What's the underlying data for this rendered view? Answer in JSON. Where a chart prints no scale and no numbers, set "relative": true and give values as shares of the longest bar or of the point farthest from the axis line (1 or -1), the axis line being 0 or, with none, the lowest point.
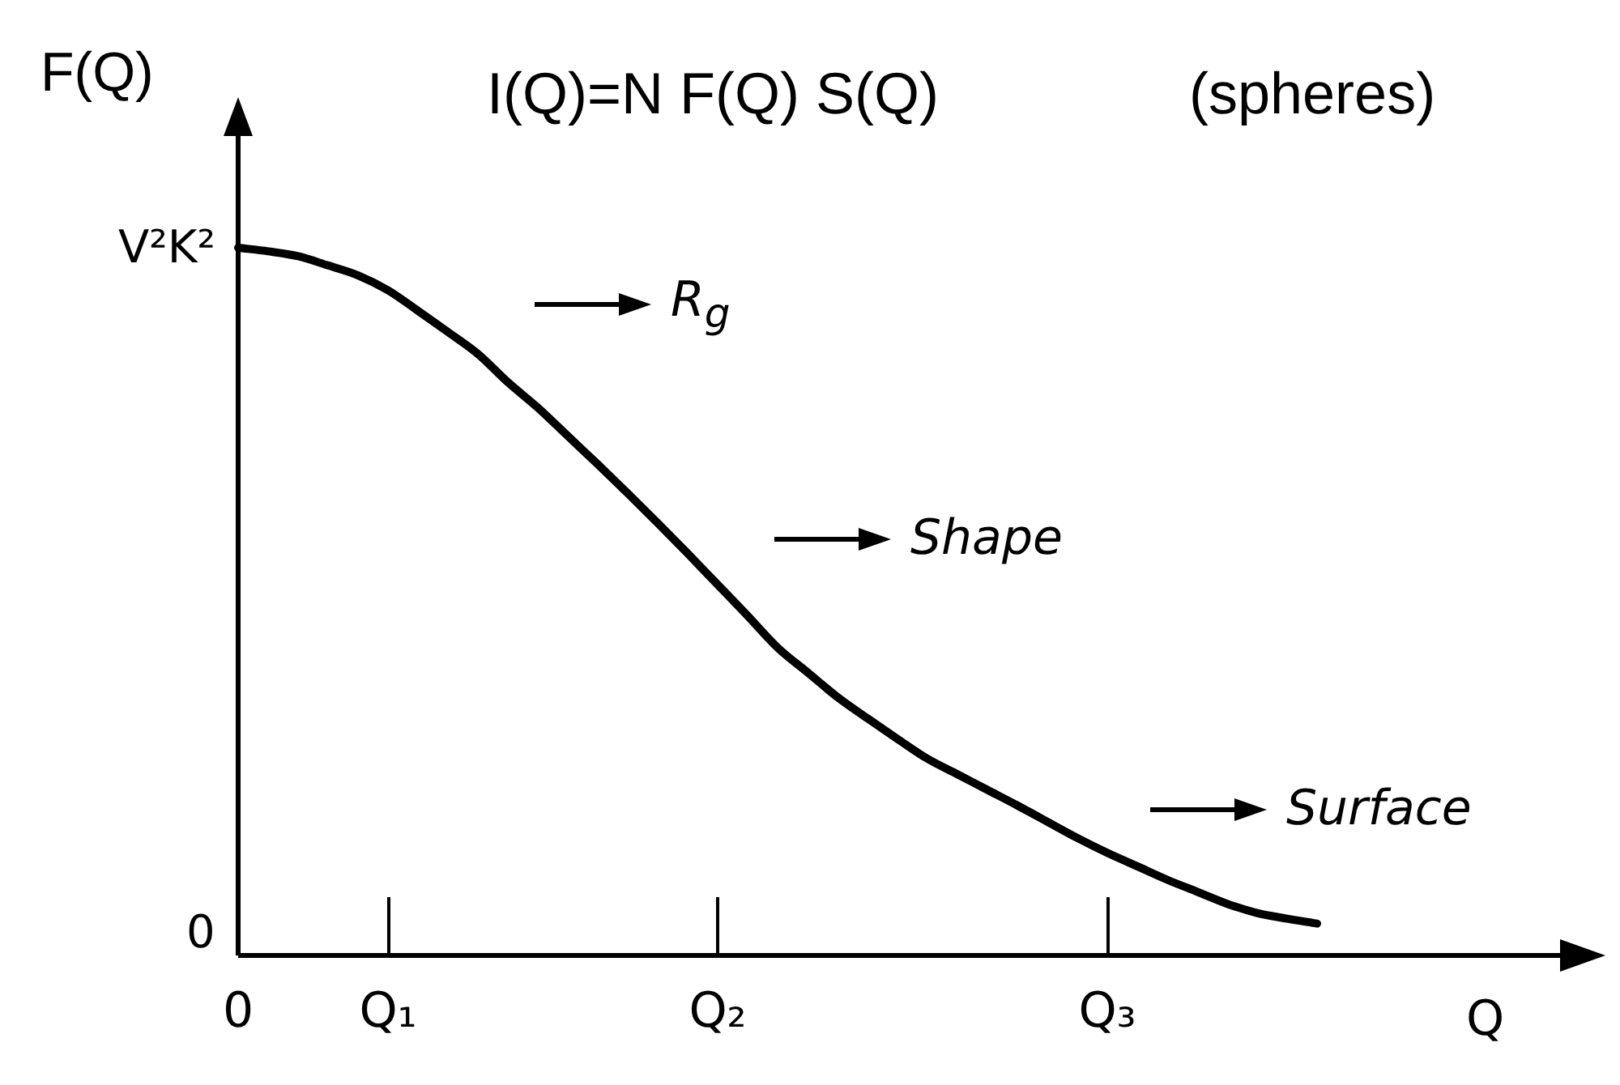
{
  "chart_data": {
    "type": "line",
    "title": "I(Q)=N F(Q) S(Q)",
    "subtitle": "(spheres)",
    "xlabel": "Q",
    "ylabel": "F(Q)",
    "relative": true,
    "marker": "none",
    "line_style": "solid",
    "categories": [
      "0",
      null,
      null,
      null,
      null,
      "Q₁",
      null,
      null,
      null,
      null,
      null,
      null,
      null,
      null,
      null,
      null,
      "Q₂",
      null,
      null,
      null,
      null,
      null,
      null,
      null,
      null,
      null,
      null,
      null,
      null,
      "Q₃",
      null,
      null,
      null,
      null,
      null,
      null,
      null,
      null,
      null,
      null,
      null,
      null,
      null,
      null,
      null
    ],
    "series": [
      {
        "color": "#000000",
        "values": [
          1,
          0.995,
          0.988,
          0.975,
          0.961,
          0.94,
          0.911,
          0.881,
          0.85,
          0.81,
          0.774,
          0.734,
          0.694,
          0.653,
          0.611,
          0.568,
          0.524,
          0.48,
          0.435,
          0.4,
          0.365,
          0.335,
          0.306,
          0.278,
          0.256,
          0.234,
          0.212,
          0.189,
          0.166,
          0.145,
          0.126,
          0.107,
          0.09,
          0.073,
          0.06,
          0.052,
          0.045,
          null,
          null,
          null,
          null,
          null,
          null,
          null,
          null
        ]
      }
    ],
    "annotations": [
      {
        "text": "V²K²",
        "x": "0",
        "y": 1
      },
      "0",
      "R$_{g}$",
      "Shape",
      "Surface"
    ]
  }
}
